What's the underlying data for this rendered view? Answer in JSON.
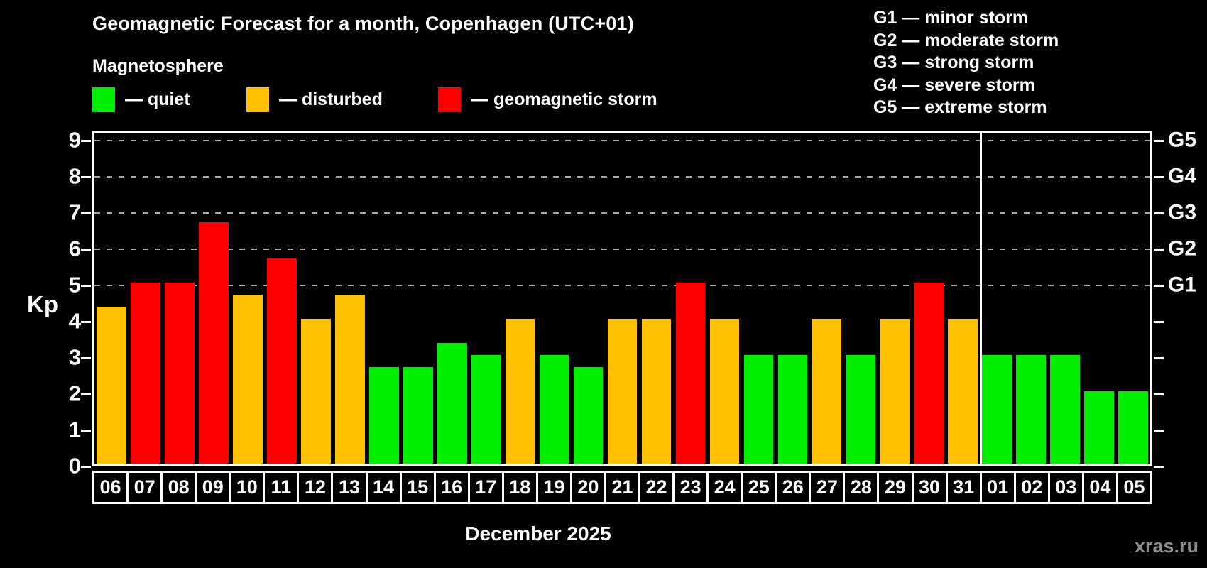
{
  "title": "Geomagnetic Forecast for a month, Copenhagen (UTC+01)",
  "subtitle": "Magnetosphere",
  "legend": {
    "items": [
      {
        "key": "quiet",
        "label": "— quiet"
      },
      {
        "key": "disturbed",
        "label": "— disturbed"
      },
      {
        "key": "storm",
        "label": "— geomagnetic storm"
      }
    ]
  },
  "g_scale": {
    "items": [
      {
        "tick": "G1",
        "kp": 5,
        "label": "G1 — minor storm"
      },
      {
        "tick": "G2",
        "kp": 6,
        "label": "G2 — moderate storm"
      },
      {
        "tick": "G3",
        "kp": 7,
        "label": "G3 — strong storm"
      },
      {
        "tick": "G4",
        "kp": 8,
        "label": "G4 — severe storm"
      },
      {
        "tick": "G5",
        "kp": 9,
        "label": "G5 — extreme storm"
      }
    ]
  },
  "chart_data": {
    "type": "bar",
    "title": "Geomagnetic Forecast for a month, Copenhagen (UTC+01)",
    "xlabel": "December 2025",
    "ylabel": "Kp",
    "ylim": [
      0,
      9.33
    ],
    "yticks": [
      0,
      1,
      2,
      3,
      4,
      5,
      6,
      7,
      8,
      9
    ],
    "gridlines_at": [
      5,
      6,
      7,
      8,
      9
    ],
    "grid": "dashed",
    "legend_position": "top",
    "month_split_index": 26,
    "categories": [
      "06",
      "07",
      "08",
      "09",
      "10",
      "11",
      "12",
      "13",
      "14",
      "15",
      "16",
      "17",
      "18",
      "19",
      "20",
      "21",
      "22",
      "23",
      "24",
      "25",
      "26",
      "27",
      "28",
      "29",
      "30",
      "31",
      "01",
      "02",
      "03",
      "04",
      "05"
    ],
    "values": [
      4.33,
      5,
      5,
      6.67,
      4.67,
      5.67,
      4,
      4.67,
      2.67,
      2.67,
      3.33,
      3,
      4,
      3,
      2.67,
      4,
      4,
      5,
      4,
      3,
      3,
      4,
      3,
      4,
      5,
      4,
      3,
      3,
      3,
      2,
      2
    ],
    "statuses": [
      "disturbed",
      "storm",
      "storm",
      "storm",
      "disturbed",
      "storm",
      "disturbed",
      "disturbed",
      "quiet",
      "quiet",
      "quiet",
      "quiet",
      "disturbed",
      "quiet",
      "quiet",
      "disturbed",
      "disturbed",
      "storm",
      "disturbed",
      "quiet",
      "quiet",
      "disturbed",
      "quiet",
      "disturbed",
      "storm",
      "disturbed",
      "quiet",
      "quiet",
      "quiet",
      "quiet",
      "quiet"
    ]
  },
  "footer": {
    "month_label": "December 2025",
    "watermark": "xras.ru"
  },
  "colors": {
    "background": "#000000",
    "quiet": "#00ee00",
    "disturbed": "#ffc000",
    "storm": "#ff0000",
    "grid": "#aaaaaa",
    "text": "#ffffff",
    "watermark": "#8c8c8c"
  }
}
